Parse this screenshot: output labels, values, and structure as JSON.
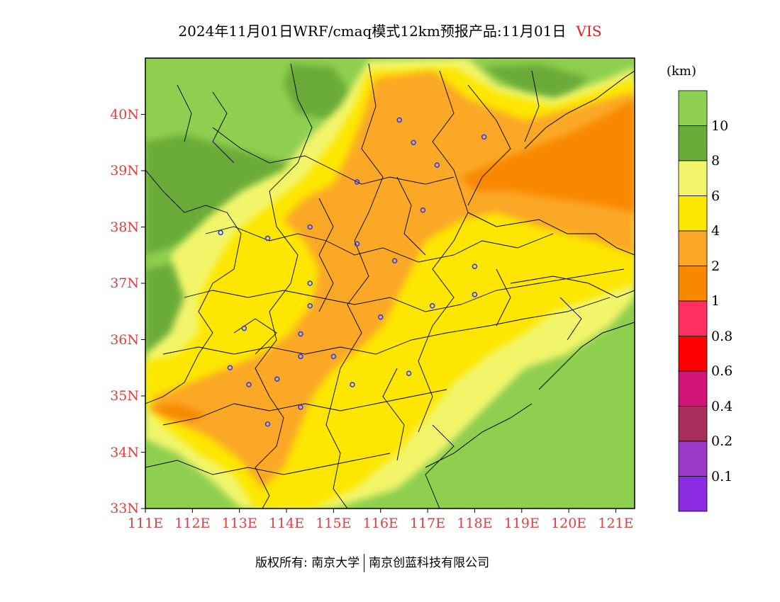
{
  "title": "2024年11月01日WRF/cmaq模式12km预报产品:11月01日",
  "variable": "VIS",
  "unit_label": "(km)",
  "x_ticks": [
    "111E",
    "112E",
    "113E",
    "114E",
    "115E",
    "116E",
    "117E",
    "118E",
    "119E",
    "120E",
    "121E"
  ],
  "y_ticks": [
    "40N",
    "39N",
    "38N",
    "37N",
    "36N",
    "35N",
    "34N",
    "33N"
  ],
  "legend": {
    "labels": [
      "10",
      "8",
      "6",
      "4",
      "2",
      "1",
      "0.8",
      "0.6",
      "0.4",
      "0.2",
      "0.1"
    ],
    "colors": [
      "#8ecf4f",
      "#6aab38",
      "#f2f56a",
      "#fde600",
      "#fba826",
      "#f88800",
      "#ff3060",
      "#ff0000",
      "#d01478",
      "#a82e5c",
      "#9a38c8",
      "#8a2be2"
    ]
  },
  "footer": {
    "left": "版权所有: 南京大学",
    "right": "南京创蓝科技有限公司"
  },
  "map": {
    "extent": {
      "lon": [
        111,
        121.4
      ],
      "lat": [
        33,
        41
      ]
    },
    "city_markers": [
      [
        116.4,
        39.9
      ],
      [
        116.7,
        39.5
      ],
      [
        118.2,
        39.6
      ],
      [
        117.2,
        39.1
      ],
      [
        115.5,
        38.8
      ],
      [
        116.9,
        38.3
      ],
      [
        112.6,
        37.9
      ],
      [
        113.6,
        37.8
      ],
      [
        114.5,
        38.0
      ],
      [
        115.5,
        37.7
      ],
      [
        116.3,
        37.4
      ],
      [
        114.5,
        37.0
      ],
      [
        114.5,
        36.6
      ],
      [
        113.1,
        36.2
      ],
      [
        114.3,
        36.1
      ],
      [
        116.0,
        36.4
      ],
      [
        117.1,
        36.6
      ],
      [
        118.0,
        37.3
      ],
      [
        118.0,
        36.8
      ],
      [
        114.3,
        35.7
      ],
      [
        115.0,
        35.7
      ],
      [
        112.8,
        35.5
      ],
      [
        113.2,
        35.2
      ],
      [
        113.8,
        35.3
      ],
      [
        115.4,
        35.2
      ],
      [
        116.6,
        35.4
      ],
      [
        114.3,
        34.8
      ],
      [
        113.6,
        34.5
      ]
    ]
  }
}
